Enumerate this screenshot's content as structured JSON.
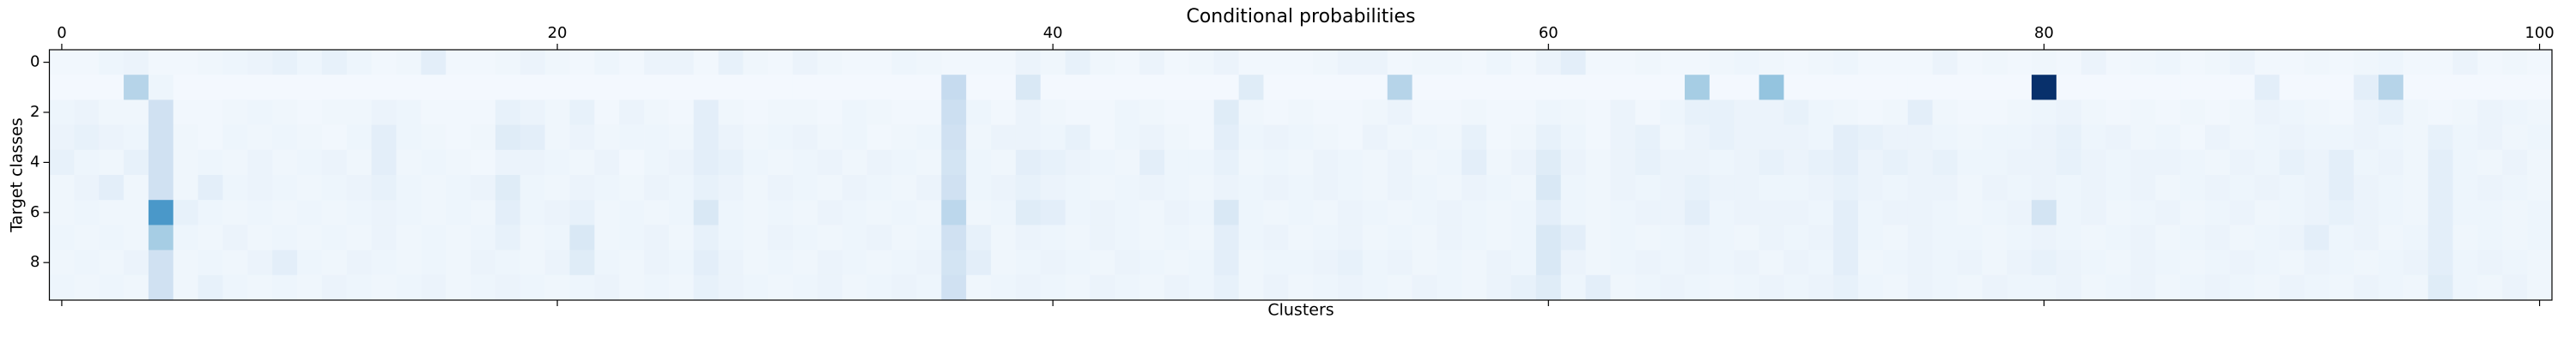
{
  "chart_data": {
    "type": "heatmap",
    "title": "Conditional probabilities",
    "xlabel": "Clusters",
    "ylabel": "Target classes",
    "colormap": "Blues",
    "xtick_side": "top",
    "xlim": [
      -0.5,
      100.5
    ],
    "ylim": [
      9.5,
      -0.5
    ],
    "xticks": [
      0,
      20,
      40,
      60,
      80,
      100
    ],
    "yticks": [
      0,
      2,
      4,
      6,
      8
    ],
    "z": [
      [
        0.03,
        0.03,
        0.05,
        0.06,
        0.03,
        0.03,
        0.04,
        0.05,
        0.06,
        0.08,
        0.05,
        0.08,
        0.05,
        0.03,
        0.04,
        0.1,
        0.03,
        0.03,
        0.04,
        0.06,
        0.04,
        0.03,
        0.05,
        0.03,
        0.06,
        0.06,
        0.03,
        0.08,
        0.04,
        0.03,
        0.06,
        0.04,
        0.03,
        0.03,
        0.05,
        0.04,
        0.03,
        0.03,
        0.03,
        0.06,
        0.04,
        0.08,
        0.04,
        0.03,
        0.06,
        0.03,
        0.04,
        0.06,
        0.03,
        0.03,
        0.03,
        0.04,
        0.06,
        0.06,
        0.03,
        0.04,
        0.04,
        0.03,
        0.05,
        0.03,
        0.06,
        0.1,
        0.03,
        0.03,
        0.04,
        0.03,
        0.03,
        0.04,
        0.05,
        0.04,
        0.03,
        0.04,
        0.05,
        0.03,
        0.03,
        0.03,
        0.06,
        0.03,
        0.04,
        0.03,
        0.04,
        0.03,
        0.06,
        0.03,
        0.04,
        0.05,
        0.03,
        0.04,
        0.06,
        0.03,
        0.03,
        0.04,
        0.03,
        0.04,
        0.05,
        0.03,
        0.03,
        0.06,
        0.03,
        0.04,
        0.03
      ],
      [
        0.02,
        0.02,
        0.02,
        0.3,
        0.05,
        0.02,
        0.02,
        0.02,
        0.02,
        0.02,
        0.02,
        0.02,
        0.02,
        0.02,
        0.02,
        0.02,
        0.02,
        0.02,
        0.02,
        0.02,
        0.02,
        0.02,
        0.02,
        0.02,
        0.02,
        0.02,
        0.02,
        0.02,
        0.02,
        0.02,
        0.02,
        0.02,
        0.02,
        0.02,
        0.02,
        0.02,
        0.25,
        0.02,
        0.02,
        0.15,
        0.02,
        0.02,
        0.02,
        0.02,
        0.02,
        0.02,
        0.02,
        0.02,
        0.12,
        0.02,
        0.02,
        0.02,
        0.02,
        0.02,
        0.3,
        0.02,
        0.02,
        0.02,
        0.02,
        0.02,
        0.02,
        0.02,
        0.02,
        0.02,
        0.02,
        0.02,
        0.35,
        0.02,
        0.02,
        0.4,
        0.02,
        0.02,
        0.02,
        0.02,
        0.02,
        0.02,
        0.02,
        0.02,
        0.02,
        0.02,
        1,
        0.02,
        0.02,
        0.02,
        0.02,
        0.02,
        0.02,
        0.02,
        0.02,
        0.1,
        0.02,
        0.02,
        0.02,
        0.1,
        0.3,
        0.02,
        0.02,
        0.02,
        0.02,
        0.02,
        0.02
      ],
      [
        0.05,
        0.06,
        0.04,
        0.04,
        0.2,
        0.03,
        0.03,
        0.04,
        0.05,
        0.04,
        0.03,
        0.04,
        0.04,
        0.06,
        0.05,
        0.03,
        0.03,
        0.03,
        0.08,
        0.06,
        0.04,
        0.08,
        0.03,
        0.06,
        0.04,
        0.03,
        0.1,
        0.04,
        0.03,
        0.04,
        0.04,
        0.03,
        0.05,
        0.04,
        0.03,
        0.03,
        0.22,
        0.05,
        0.03,
        0.06,
        0.04,
        0.03,
        0.03,
        0.05,
        0.04,
        0.03,
        0.03,
        0.12,
        0.04,
        0.03,
        0.04,
        0.03,
        0.03,
        0.04,
        0.06,
        0.03,
        0.03,
        0.04,
        0.03,
        0.03,
        0.05,
        0.04,
        0.03,
        0.06,
        0.03,
        0.05,
        0.08,
        0.08,
        0.06,
        0.06,
        0.08,
        0.05,
        0.04,
        0.03,
        0.04,
        0.1,
        0.04,
        0.03,
        0.03,
        0.04,
        0.05,
        0.06,
        0.04,
        0.03,
        0.04,
        0.03,
        0.04,
        0.03,
        0.04,
        0.06,
        0.05,
        0.04,
        0.03,
        0.06,
        0.08,
        0.04,
        0.03,
        0.04,
        0.06,
        0.05,
        0.04
      ],
      [
        0.06,
        0.08,
        0.06,
        0.05,
        0.2,
        0.04,
        0.03,
        0.05,
        0.04,
        0.05,
        0.04,
        0.03,
        0.05,
        0.1,
        0.05,
        0.04,
        0.03,
        0.04,
        0.12,
        0.1,
        0.04,
        0.06,
        0.04,
        0.05,
        0.05,
        0.04,
        0.1,
        0.06,
        0.04,
        0.05,
        0.06,
        0.04,
        0.05,
        0.03,
        0.04,
        0.05,
        0.2,
        0.04,
        0.06,
        0.06,
        0.05,
        0.08,
        0.03,
        0.05,
        0.06,
        0.04,
        0.03,
        0.1,
        0.05,
        0.06,
        0.05,
        0.04,
        0.03,
        0.06,
        0.04,
        0.05,
        0.04,
        0.08,
        0.03,
        0.04,
        0.08,
        0.05,
        0.03,
        0.06,
        0.08,
        0.04,
        0.06,
        0.08,
        0.06,
        0.06,
        0.06,
        0.05,
        0.1,
        0.08,
        0.06,
        0.06,
        0.05,
        0.04,
        0.05,
        0.05,
        0.06,
        0.08,
        0.05,
        0.06,
        0.04,
        0.05,
        0.03,
        0.06,
        0.04,
        0.05,
        0.06,
        0.05,
        0.05,
        0.06,
        0.05,
        0.04,
        0.08,
        0.05,
        0.06,
        0.04,
        0.05
      ],
      [
        0.08,
        0.05,
        0.04,
        0.08,
        0.2,
        0.04,
        0.05,
        0.04,
        0.06,
        0.04,
        0.05,
        0.06,
        0.04,
        0.1,
        0.04,
        0.05,
        0.04,
        0.03,
        0.06,
        0.06,
        0.05,
        0.04,
        0.06,
        0.03,
        0.05,
        0.06,
        0.1,
        0.08,
        0.05,
        0.04,
        0.05,
        0.06,
        0.04,
        0.06,
        0.05,
        0.04,
        0.18,
        0.05,
        0.04,
        0.1,
        0.08,
        0.06,
        0.05,
        0.04,
        0.1,
        0.05,
        0.05,
        0.08,
        0.04,
        0.05,
        0.04,
        0.06,
        0.05,
        0.04,
        0.06,
        0.04,
        0.05,
        0.1,
        0.04,
        0.06,
        0.12,
        0.06,
        0.04,
        0.06,
        0.08,
        0.06,
        0.06,
        0.05,
        0.06,
        0.08,
        0.06,
        0.08,
        0.1,
        0.06,
        0.08,
        0.06,
        0.08,
        0.05,
        0.05,
        0.06,
        0.06,
        0.08,
        0.06,
        0.05,
        0.06,
        0.06,
        0.05,
        0.04,
        0.06,
        0.05,
        0.08,
        0.06,
        0.1,
        0.05,
        0.06,
        0.04,
        0.1,
        0.05,
        0.04,
        0.06,
        0.04
      ],
      [
        0.04,
        0.06,
        0.1,
        0.04,
        0.2,
        0.04,
        0.1,
        0.05,
        0.06,
        0.05,
        0.04,
        0.05,
        0.06,
        0.08,
        0.05,
        0.04,
        0.05,
        0.06,
        0.12,
        0.05,
        0.04,
        0.06,
        0.05,
        0.04,
        0.06,
        0.05,
        0.08,
        0.06,
        0.04,
        0.06,
        0.05,
        0.04,
        0.06,
        0.05,
        0.04,
        0.06,
        0.2,
        0.05,
        0.06,
        0.08,
        0.06,
        0.05,
        0.04,
        0.05,
        0.06,
        0.05,
        0.04,
        0.06,
        0.05,
        0.06,
        0.05,
        0.06,
        0.05,
        0.04,
        0.06,
        0.05,
        0.04,
        0.06,
        0.05,
        0.04,
        0.15,
        0.05,
        0.04,
        0.06,
        0.05,
        0.06,
        0.08,
        0.06,
        0.06,
        0.05,
        0.05,
        0.06,
        0.08,
        0.06,
        0.05,
        0.06,
        0.06,
        0.04,
        0.06,
        0.05,
        0.06,
        0.05,
        0.06,
        0.05,
        0.06,
        0.04,
        0.05,
        0.06,
        0.05,
        0.06,
        0.05,
        0.06,
        0.1,
        0.06,
        0.05,
        0.04,
        0.1,
        0.05,
        0.06,
        0.05,
        0.04
      ],
      [
        0.04,
        0.05,
        0.04,
        0.04,
        0.6,
        0.08,
        0.05,
        0.04,
        0.05,
        0.04,
        0.05,
        0.04,
        0.05,
        0.06,
        0.05,
        0.04,
        0.05,
        0.04,
        0.1,
        0.05,
        0.06,
        0.08,
        0.04,
        0.05,
        0.04,
        0.05,
        0.15,
        0.05,
        0.04,
        0.05,
        0.04,
        0.06,
        0.05,
        0.04,
        0.05,
        0.04,
        0.28,
        0.04,
        0.05,
        0.12,
        0.1,
        0.05,
        0.06,
        0.05,
        0.04,
        0.06,
        0.05,
        0.15,
        0.05,
        0.04,
        0.05,
        0.04,
        0.06,
        0.05,
        0.04,
        0.05,
        0.06,
        0.05,
        0.04,
        0.05,
        0.1,
        0.05,
        0.04,
        0.05,
        0.06,
        0.06,
        0.1,
        0.05,
        0.06,
        0.06,
        0.06,
        0.05,
        0.1,
        0.05,
        0.06,
        0.06,
        0.05,
        0.04,
        0.05,
        0.06,
        0.18,
        0.05,
        0.06,
        0.04,
        0.05,
        0.06,
        0.04,
        0.05,
        0.06,
        0.04,
        0.05,
        0.06,
        0.08,
        0.06,
        0.05,
        0.04,
        0.1,
        0.05,
        0.05,
        0.04,
        0.05
      ],
      [
        0.05,
        0.04,
        0.05,
        0.04,
        0.35,
        0.05,
        0.04,
        0.06,
        0.04,
        0.05,
        0.04,
        0.05,
        0.04,
        0.06,
        0.04,
        0.05,
        0.04,
        0.05,
        0.08,
        0.04,
        0.05,
        0.15,
        0.04,
        0.05,
        0.06,
        0.04,
        0.08,
        0.05,
        0.04,
        0.06,
        0.05,
        0.04,
        0.05,
        0.06,
        0.04,
        0.05,
        0.2,
        0.08,
        0.04,
        0.06,
        0.05,
        0.04,
        0.06,
        0.05,
        0.04,
        0.05,
        0.04,
        0.1,
        0.05,
        0.06,
        0.04,
        0.05,
        0.06,
        0.04,
        0.05,
        0.04,
        0.06,
        0.05,
        0.04,
        0.05,
        0.15,
        0.1,
        0.04,
        0.05,
        0.04,
        0.05,
        0.06,
        0.05,
        0.04,
        0.06,
        0.05,
        0.06,
        0.1,
        0.05,
        0.04,
        0.06,
        0.05,
        0.05,
        0.04,
        0.05,
        0.06,
        0.05,
        0.04,
        0.05,
        0.06,
        0.04,
        0.05,
        0.06,
        0.04,
        0.05,
        0.06,
        0.1,
        0.05,
        0.06,
        0.04,
        0.05,
        0.1,
        0.04,
        0.05,
        0.04,
        0.05
      ],
      [
        0.04,
        0.05,
        0.04,
        0.06,
        0.2,
        0.04,
        0.05,
        0.04,
        0.06,
        0.1,
        0.05,
        0.04,
        0.06,
        0.05,
        0.04,
        0.05,
        0.04,
        0.06,
        0.05,
        0.04,
        0.06,
        0.12,
        0.05,
        0.04,
        0.06,
        0.05,
        0.1,
        0.06,
        0.04,
        0.05,
        0.04,
        0.06,
        0.05,
        0.04,
        0.05,
        0.06,
        0.18,
        0.1,
        0.04,
        0.05,
        0.06,
        0.05,
        0.04,
        0.06,
        0.05,
        0.04,
        0.05,
        0.1,
        0.04,
        0.05,
        0.05,
        0.06,
        0.08,
        0.05,
        0.06,
        0.04,
        0.05,
        0.04,
        0.06,
        0.05,
        0.15,
        0.06,
        0.04,
        0.05,
        0.06,
        0.05,
        0.06,
        0.05,
        0.06,
        0.04,
        0.06,
        0.05,
        0.1,
        0.04,
        0.05,
        0.06,
        0.05,
        0.06,
        0.04,
        0.06,
        0.08,
        0.06,
        0.05,
        0.04,
        0.06,
        0.05,
        0.04,
        0.05,
        0.06,
        0.05,
        0.04,
        0.06,
        0.05,
        0.04,
        0.05,
        0.06,
        0.1,
        0.05,
        0.06,
        0.05,
        0.04
      ],
      [
        0.05,
        0.04,
        0.05,
        0.04,
        0.2,
        0.04,
        0.08,
        0.05,
        0.04,
        0.05,
        0.04,
        0.06,
        0.05,
        0.04,
        0.05,
        0.06,
        0.04,
        0.05,
        0.06,
        0.05,
        0.04,
        0.05,
        0.06,
        0.04,
        0.05,
        0.04,
        0.08,
        0.06,
        0.05,
        0.04,
        0.05,
        0.06,
        0.04,
        0.05,
        0.06,
        0.05,
        0.2,
        0.04,
        0.05,
        0.06,
        0.05,
        0.04,
        0.06,
        0.05,
        0.04,
        0.06,
        0.05,
        0.08,
        0.04,
        0.06,
        0.04,
        0.05,
        0.06,
        0.05,
        0.04,
        0.06,
        0.05,
        0.04,
        0.06,
        0.08,
        0.12,
        0.05,
        0.1,
        0.04,
        0.05,
        0.06,
        0.05,
        0.04,
        0.05,
        0.06,
        0.05,
        0.06,
        0.08,
        0.05,
        0.04,
        0.06,
        0.05,
        0.04,
        0.06,
        0.05,
        0.05,
        0.06,
        0.04,
        0.05,
        0.06,
        0.04,
        0.05,
        0.06,
        0.05,
        0.04,
        0.06,
        0.05,
        0.04,
        0.06,
        0.05,
        0.04,
        0.12,
        0.05,
        0.04,
        0.06,
        0.04
      ]
    ]
  }
}
